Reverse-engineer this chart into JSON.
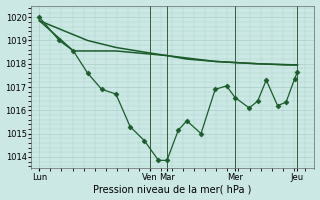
{
  "bg_color": "#cce8e4",
  "grid_color": "#aacfcb",
  "line_color": "#1a5c2a",
  "marker_color": "#1a5c2a",
  "ylim": [
    1013.5,
    1020.5
  ],
  "yticks": [
    1014,
    1015,
    1016,
    1017,
    1018,
    1019,
    1020
  ],
  "xlim": [
    0,
    100
  ],
  "xtick_positions": [
    3,
    42,
    48,
    72,
    94
  ],
  "xtick_labels": [
    "Lun",
    "Ven",
    "Mar",
    "Mer",
    "Jeu"
  ],
  "xlabel": "Pression niveau de la mer( hPa )",
  "line1_x": [
    3,
    10,
    20,
    30,
    40,
    48,
    55,
    65,
    72,
    80,
    90,
    94
  ],
  "line1_y": [
    1019.85,
    1019.5,
    1019.0,
    1018.7,
    1018.5,
    1018.35,
    1018.2,
    1018.1,
    1018.05,
    1018.0,
    1017.95,
    1017.95
  ],
  "line2_x": [
    3,
    10,
    15,
    20,
    25,
    30,
    35,
    40,
    45,
    48,
    52,
    55,
    60,
    65,
    69,
    72,
    77,
    80,
    83,
    87,
    90,
    93,
    94
  ],
  "line2_y": [
    1020.0,
    1019.0,
    1018.55,
    1017.6,
    1016.9,
    1016.7,
    1015.3,
    1014.7,
    1013.85,
    1013.85,
    1015.15,
    1015.55,
    1015.0,
    1016.9,
    1017.05,
    1016.55,
    1016.1,
    1016.4,
    1017.3,
    1016.2,
    1016.35,
    1017.35,
    1017.65
  ],
  "line3_x": [
    3,
    15,
    30,
    48,
    65,
    80,
    94
  ],
  "line3_y": [
    1019.85,
    1018.55,
    1018.55,
    1018.35,
    1018.1,
    1018.0,
    1017.95
  ],
  "vline_positions": [
    42,
    48,
    72,
    94
  ],
  "fig_width": 3.2,
  "fig_height": 2.0,
  "dpi": 100
}
